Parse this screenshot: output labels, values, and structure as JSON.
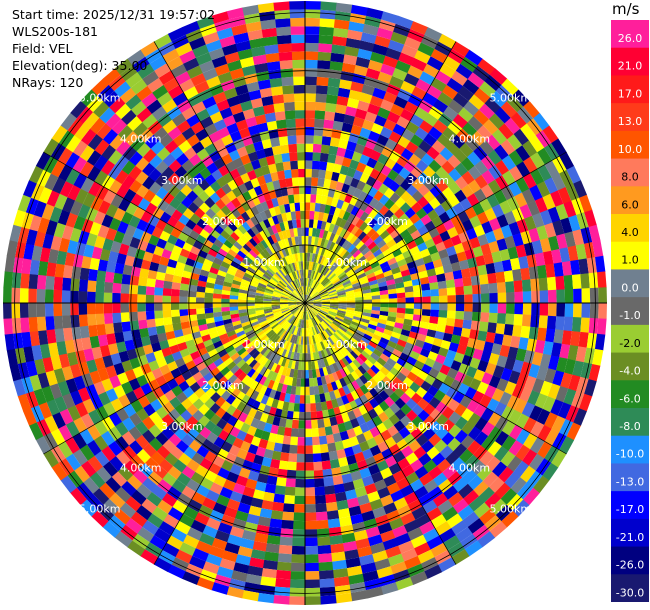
{
  "header": {
    "start_time": "Start time: 2025/12/31 19:57:02",
    "site": "WLS200s-181",
    "field": "Field: VEL",
    "elevation": "Elevation(deg): 35.00",
    "nrays": "NRays: 120"
  },
  "colorbar": {
    "unit": "m/s",
    "levels": [
      "26.0",
      "21.0",
      "17.0",
      "13.0",
      "10.0",
      "8.0",
      "6.0",
      "4.0",
      "1.0",
      "0.0",
      "-1.0",
      "-2.0",
      "-4.0",
      "-6.0",
      "-8.0",
      "-10.0",
      "-13.0",
      "-17.0",
      "-21.0",
      "-26.0",
      "-30.0"
    ],
    "colors": [
      "#ff1f9b",
      "#ff0033",
      "#ff1a1a",
      "#ff3b1a",
      "#ff5500",
      "#ff7a5c",
      "#ff9a1f",
      "#ffd400",
      "#ffff00",
      "#708090",
      "#696969",
      "#9acd32",
      "#6b8e23",
      "#228b22",
      "#2e8b57",
      "#1e90ff",
      "#4169e1",
      "#0000ff",
      "#0000cd",
      "#000080",
      "#191970"
    ]
  },
  "chart_data": {
    "type": "ppi",
    "field": "VEL",
    "nrays": 120,
    "elevation_deg": 35.0,
    "range_rings_km": [
      1,
      2,
      3,
      4,
      5
    ],
    "ring_labels": [
      "1.00km",
      "2.00km",
      "3.00km",
      "4.00km",
      "5.00km"
    ],
    "max_range_km": 5.2,
    "near_zone_km": 1.2,
    "grid": true
  }
}
